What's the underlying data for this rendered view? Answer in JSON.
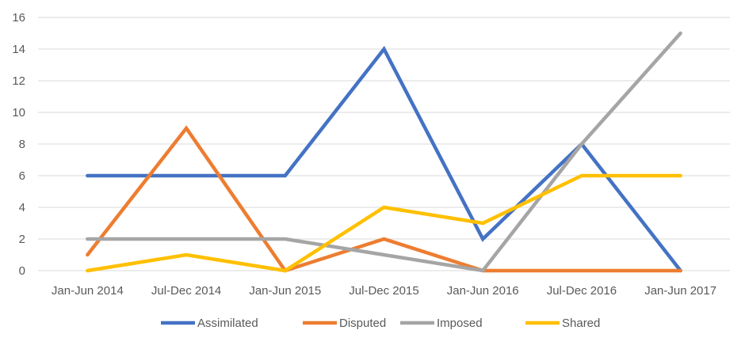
{
  "chart_data": {
    "type": "line",
    "title": "",
    "xlabel": "",
    "ylabel": "",
    "ylim": [
      0,
      16
    ],
    "ytick_step": 2,
    "grid": true,
    "legend_position": "bottom",
    "categories": [
      "Jan-Jun 2014",
      "Jul-Dec 2014",
      "Jan-Jun 2015",
      "Jul-Dec 2015",
      "Jan-Jun 2016",
      "Jul-Dec 2016",
      "Jan-Jun 2017"
    ],
    "series": [
      {
        "name": "Assimilated",
        "color": "#4472C4",
        "values": [
          6,
          6,
          6,
          14,
          2,
          8,
          0
        ]
      },
      {
        "name": "Disputed",
        "color": "#ED7D31",
        "values": [
          1,
          9,
          0,
          2,
          0,
          0,
          0
        ]
      },
      {
        "name": "Imposed",
        "color": "#A5A5A5",
        "values": [
          2,
          2,
          2,
          1,
          0,
          8,
          15
        ]
      },
      {
        "name": "Shared",
        "color": "#FFC000",
        "values": [
          0,
          1,
          0,
          4,
          3,
          6,
          6
        ]
      }
    ]
  }
}
